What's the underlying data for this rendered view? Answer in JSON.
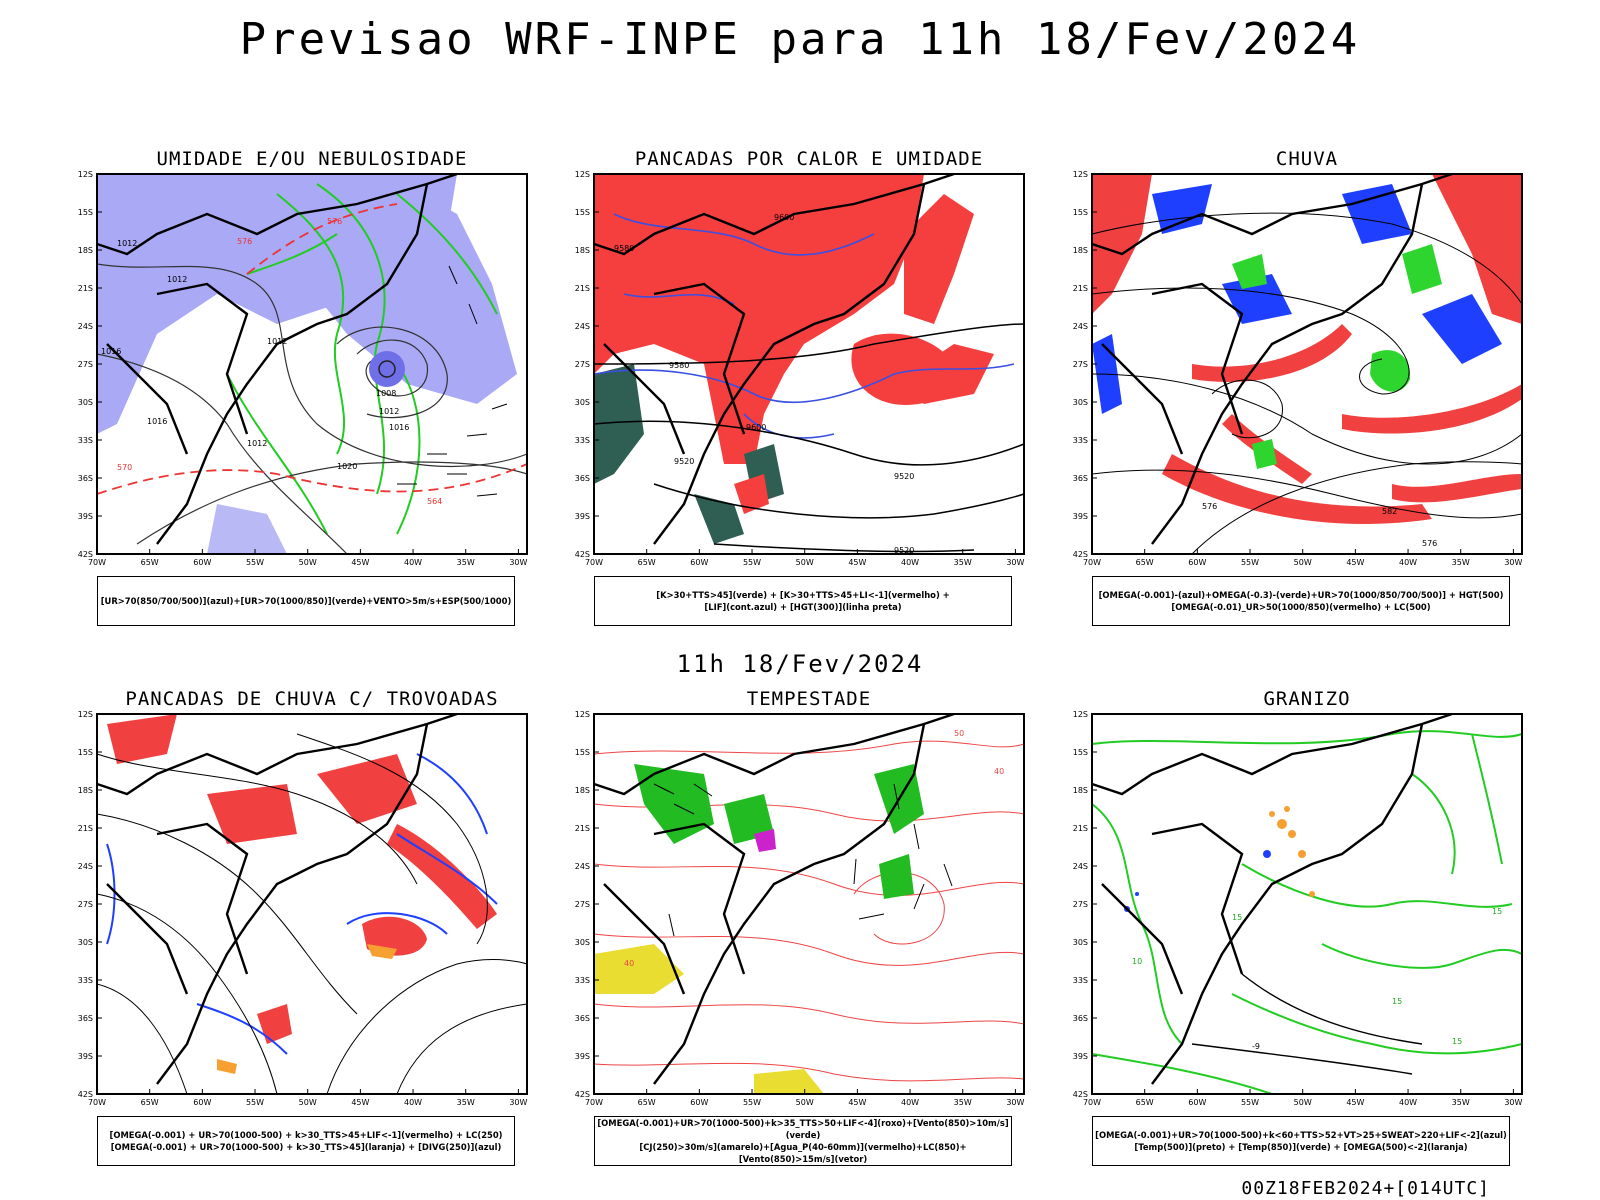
{
  "title": "Previsao WRF-INPE  para 11h 18/Fev/2024",
  "mid_date": "11h 18/Fev/2024",
  "footer": "00Z18FEB2024+[014UTC]",
  "axes": {
    "lat_ticks": [
      "12S",
      "15S",
      "18S",
      "21S",
      "24S",
      "27S",
      "30S",
      "33S",
      "36S",
      "39S",
      "42S"
    ],
    "lon_ticks": [
      "70W",
      "65W",
      "60W",
      "55W",
      "50W",
      "45W",
      "40W",
      "35W",
      "30W"
    ]
  },
  "panels": [
    {
      "id": "umidade",
      "title": "UMIDADE E/OU NEBULOSIDADE",
      "legend": [
        "[UR>70(850/700/500)](azul)+[UR>70(1000/850)](verde)+VENTO>5m/s+ESP(500/1000)"
      ],
      "labels": [
        "1012",
        "1012",
        "1016",
        "1016",
        "1012",
        "1012",
        "1008",
        "1012",
        "1016",
        "1020",
        "570",
        "576",
        "564",
        "576"
      ],
      "colors": {
        "fill": "#a9a9f5",
        "contour": "#22cc22",
        "dashed": "#ee3333"
      }
    },
    {
      "id": "pancadas-calor",
      "title": "PANCADAS POR CALOR E UMIDADE",
      "legend": [
        "[K>30+TTS>45](verde) + [K>30+TTS>45+LI<-1](vermelho) +",
        "[LIF](cont.azul) + [HGT(300)](linha preta)"
      ],
      "labels": [
        "9580",
        "9580",
        "9600",
        "9520",
        "9520",
        "9600",
        "9520"
      ],
      "colors": {
        "fill": "#f53f3f",
        "contour": "#3b4fe0",
        "dark": "#2f5e52"
      }
    },
    {
      "id": "chuva",
      "title": "CHUVA",
      "legend": [
        "[OMEGA(-0.001)-(azul)+OMEGA(-0.3)-(verde)+UR>70(1000/850/700/500)] + HGT(500)",
        "[OMEGA(-0.01)_UR>50(1000/850)(vermelho) + LC(500)"
      ],
      "labels": [
        "576",
        "582",
        "576"
      ],
      "colors": {
        "red": "#f04040",
        "blue": "#1f3fff",
        "green": "#2fd52f"
      }
    },
    {
      "id": "trovoadas",
      "title": "PANCADAS DE CHUVA C/ TROVOADAS",
      "legend": [
        "[OMEGA(-0.001) + UR>70(1000-500) + k>30_TTS>45+LIF<-1](vermelho) + LC(250)",
        "[OMEGA(-0.001) + UR>70(1000-500) + k>30_TTS>45](laranja) + [DIVG(250)](azul)"
      ],
      "labels": [],
      "colors": {
        "red": "#f04040",
        "blue": "#1f3fff",
        "orange": "#f5a030"
      }
    },
    {
      "id": "tempestade",
      "title": "TEMPESTADE",
      "legend": [
        "[OMEGA(-0.001)+UR>70(1000-500)+k>35_TTS>50+LIF<-4](roxo)+[Vento(850)>10m/s](verde)",
        "[CJ(250)>30m/s](amarelo)+[Agua_P(40-60mm)](vermelho)+LC(850)+[Vento(850)>15m/s](vetor)"
      ],
      "labels": [
        "40",
        "40",
        "50"
      ],
      "colors": {
        "red": "#ee4444",
        "green": "#22bb22",
        "yellow": "#e8dd30",
        "purple": "#cc22cc"
      }
    },
    {
      "id": "granizo",
      "title": "GRANIZO",
      "legend": [
        "[OMEGA(-0.001)+UR>70(1000-500)+k<60+TTS>52+VT>25+SWEAT>220+LIF<-2](azul)",
        "[Temp(500)](preto) + [Temp(850)](verde) + [OMEGA(500)<-2](laranja)"
      ],
      "labels": [
        "15",
        "15",
        "15",
        "10",
        "15",
        "-9"
      ],
      "colors": {
        "green": "#22cc22",
        "orange": "#f5a030",
        "blue": "#1f3fff"
      }
    }
  ]
}
